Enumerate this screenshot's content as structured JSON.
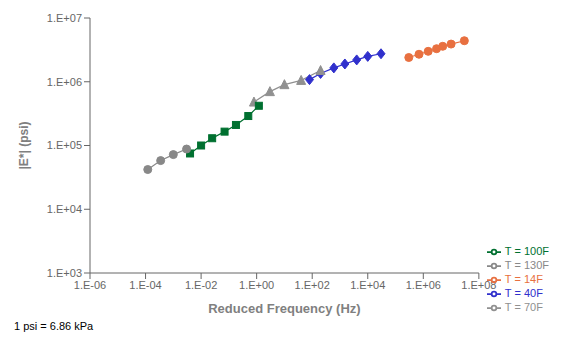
{
  "chart_data": {
    "type": "line",
    "xlabel": "Reduced Frequency (Hz)",
    "ylabel": "|E*| (psi)",
    "footnote": "1 psi = 6.86 kPa",
    "log": true,
    "grid": false,
    "legend": "lower right",
    "xlim": [
      1e-06,
      100000000
    ],
    "ylim": [
      1000,
      10000000
    ],
    "xticks": [
      {
        "value": 1e-06,
        "label": "1.E-06"
      },
      {
        "value": 0.0001,
        "label": "1.E-04"
      },
      {
        "value": 0.01,
        "label": "1.E-02"
      },
      {
        "value": 1,
        "label": "1.E+00"
      },
      {
        "value": 100,
        "label": "1.E+02"
      },
      {
        "value": 10000,
        "label": "1.E+04"
      },
      {
        "value": 1000000,
        "label": "1.E+06"
      },
      {
        "value": 100000000,
        "label": "1.E+08"
      }
    ],
    "yticks": [
      {
        "value": 1000,
        "label": "1.E+03"
      },
      {
        "value": 10000,
        "label": "1.E+04"
      },
      {
        "value": 100000,
        "label": "1.E+05"
      },
      {
        "value": 1000000,
        "label": "1.E+06"
      },
      {
        "value": 10000000,
        "label": "1.E+07"
      }
    ],
    "series": [
      {
        "name": "T = 14F",
        "color": "#E87040",
        "marker": "circle",
        "x": [
          300000,
          700000,
          1500000,
          3000000,
          5000000,
          10000000,
          30000000
        ],
        "values": [
          2400000,
          2700000,
          3000000,
          3300000,
          3600000,
          3900000,
          4400000
        ]
      },
      {
        "name": "T = 40F",
        "color": "#3030CC",
        "marker": "diamond",
        "x": [
          80,
          200,
          600,
          1500,
          4000,
          10000,
          30000
        ],
        "values": [
          1080000,
          1350000,
          1650000,
          1900000,
          2200000,
          2500000,
          2750000
        ]
      },
      {
        "name": "T = 70F",
        "color": "#909090",
        "marker": "triangle",
        "x": [
          0.8,
          3.0,
          10,
          40,
          200
        ],
        "values": [
          480000,
          700000,
          900000,
          1050000,
          1500000
        ]
      },
      {
        "name": "T = 100F",
        "color": "#007030",
        "marker": "square",
        "x": [
          0.004,
          0.01,
          0.025,
          0.07,
          0.18,
          0.5,
          1.2
        ],
        "values": [
          75000,
          100000,
          130000,
          165000,
          210000,
          290000,
          420000
        ]
      },
      {
        "name": "T = 130F",
        "color": "#888888",
        "marker": "circle",
        "x": [
          0.00012,
          0.00035,
          0.001,
          0.003
        ],
        "values": [
          42000,
          58000,
          72000,
          88000
        ]
      }
    ]
  }
}
